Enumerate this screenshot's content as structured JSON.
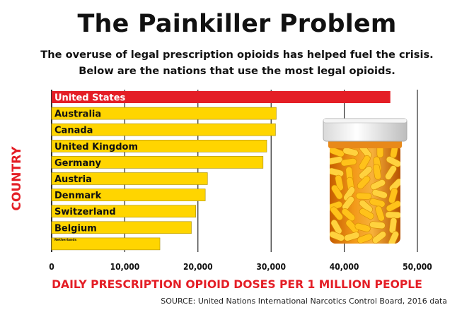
{
  "title": "The Painkiller Problem",
  "subtitle": "The overuse of legal prescription opioids has helped fuel the crisis. Below are the nations that use the most legal opioids.",
  "source": "SOURCE: United Nations International Narcotics Control Board, 2016 data",
  "colors": {
    "highlight_bar": "#e41e26",
    "bar": "#ffd500",
    "bar_stroke": "#a88c00",
    "highlight_text": "#ffffff",
    "text": "#111111",
    "axis_label": "#e41e26"
  },
  "decoration": "pill-bottle-illustration",
  "chart_data": {
    "type": "bar",
    "orientation": "horizontal",
    "categories": [
      "United States",
      "Australia",
      "Canada",
      "United Kingdom",
      "Germany",
      "Austria",
      "Denmark",
      "Switzerland",
      "Belgium",
      "Netherlands"
    ],
    "values": [
      46300,
      30700,
      30600,
      29400,
      28900,
      21300,
      21000,
      19700,
      19100,
      14800
    ],
    "highlight": "United States",
    "xlabel": "DAILY PRESCRIPTION OPIOID DOSES PER 1 MILLION PEOPLE",
    "ylabel": "COUNTRY",
    "xlim": [
      0,
      50000
    ],
    "xticks": [
      0,
      10000,
      20000,
      30000,
      40000,
      50000
    ],
    "xtick_labels": [
      "0",
      "10,000",
      "20,000",
      "30,000",
      "40,000",
      "50,000"
    ],
    "grid": true
  }
}
